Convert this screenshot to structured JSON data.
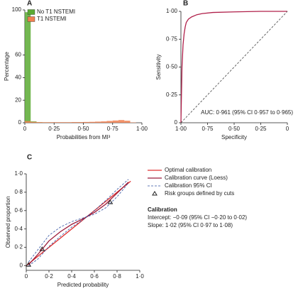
{
  "chart_data": [
    {
      "type": "histogram",
      "title": "A",
      "xlabel": "Probabilities from MI³",
      "ylabel": "Percentage",
      "bins": [
        0,
        0.05,
        0.1,
        0.15,
        0.2,
        0.25,
        0.3,
        0.35,
        0.4,
        0.45,
        0.5,
        0.55,
        0.6,
        0.65,
        0.7,
        0.75,
        0.8,
        0.85,
        0.9,
        0.95,
        1.0
      ],
      "series": [
        {
          "name": "No T1 NSTEMI",
          "color": "#5aaa32",
          "values": [
            98,
            1.2,
            0.4,
            0.2,
            0.1,
            0.05,
            0.05,
            0.03,
            0.02,
            0.02,
            0.01,
            0.01,
            0.01,
            0.01,
            0.01,
            0,
            0,
            0,
            0,
            0
          ]
        },
        {
          "name": "T1 NSTEMI",
          "color": "#f08050",
          "values": [
            1.5,
            0.8,
            0.6,
            0.5,
            0.5,
            0.5,
            0.5,
            0.5,
            0.6,
            0.6,
            0.7,
            0.8,
            1.0,
            1.2,
            1.6,
            2.0,
            2.4,
            1.8,
            0.3,
            0
          ]
        }
      ],
      "xlim": [
        0,
        1
      ],
      "ylim": [
        0,
        100
      ],
      "xticks": [
        0,
        {
          "value": 0.25,
          "label": "0·25"
        },
        {
          "value": 0.5,
          "label": "0·50"
        },
        {
          "value": 0.75,
          "label": "0·75"
        },
        {
          "value": 1,
          "label": "1·00"
        }
      ],
      "yticks": [
        0,
        20,
        40,
        60,
        100
      ],
      "legend": "upper left"
    },
    {
      "type": "line",
      "title": "B",
      "xlabel": "Specificity",
      "ylabel": "Sensitivity",
      "series": [
        {
          "color": "#b0204a",
          "x": [
            1,
            0.99,
            0.98,
            0.97,
            0.96,
            0.95,
            0.93,
            0.9,
            0.85,
            0.8,
            0.7,
            0.5,
            0.25,
            0
          ],
          "values": [
            0,
            0.5,
            0.7,
            0.8,
            0.86,
            0.9,
            0.93,
            0.95,
            0.97,
            0.98,
            0.99,
            0.995,
            1,
            1
          ]
        },
        {
          "color": "#444444",
          "linestyle": "dashed",
          "x": [
            1,
            0
          ],
          "values": [
            0,
            1
          ]
        }
      ],
      "xlim": [
        1,
        0
      ],
      "ylim": [
        0,
        1
      ],
      "xticks": [
        {
          "value": 1,
          "label": "1·00"
        },
        {
          "value": 0.75,
          "label": "0·75"
        },
        {
          "value": 0.5,
          "label": "0·50"
        },
        {
          "value": 0.25,
          "label": "0·25"
        },
        0
      ],
      "yticks": [
        0,
        {
          "value": 0.25,
          "label": "0·25"
        },
        {
          "value": 0.5,
          "label": "0·50"
        },
        {
          "value": 0.75,
          "label": "0·75"
        },
        {
          "value": 1,
          "label": "1·00"
        }
      ],
      "annotation": "AUC: 0·961 (95% CI 0·957 to 0·965)"
    },
    {
      "type": "line",
      "title": "C",
      "xlabel": "Predicted probability",
      "ylabel": "Observed proportion",
      "series": [
        {
          "name": "Optimal calibration",
          "color": "#e03030",
          "x": [
            0,
            0.92
          ],
          "values": [
            0,
            0.92
          ]
        },
        {
          "name": "Calibration curve (Loess)",
          "color": "#9b1b3a",
          "x": [
            0.02,
            0.1,
            0.2,
            0.3,
            0.4,
            0.5,
            0.6,
            0.7,
            0.8,
            0.9
          ],
          "values": [
            0.01,
            0.12,
            0.27,
            0.37,
            0.45,
            0.51,
            0.58,
            0.67,
            0.79,
            0.91
          ]
        },
        {
          "name": "Calibration 95% CI",
          "color": "#3050a0",
          "linestyle": "dashed",
          "x": [
            0.02,
            0.1,
            0.2,
            0.3,
            0.4,
            0.5,
            0.6,
            0.7,
            0.8,
            0.9
          ],
          "values": [
            0.04,
            0.17,
            0.33,
            0.42,
            0.48,
            0.52,
            0.56,
            0.63,
            0.75,
            0.9
          ]
        },
        {
          "color": "#3050a0",
          "linestyle": "dashed",
          "x": [
            0.02,
            0.1,
            0.2,
            0.3,
            0.4,
            0.5,
            0.6,
            0.7,
            0.8,
            0.9
          ],
          "values": [
            0,
            0.07,
            0.21,
            0.32,
            0.42,
            0.5,
            0.6,
            0.71,
            0.83,
            0.94
          ]
        },
        {
          "name": "Risk groups defined by cuts",
          "color": "#222222",
          "marker": "triangle",
          "x": [
            0.02,
            0.14,
            0.74
          ],
          "values": [
            0.01,
            0.18,
            0.69
          ]
        }
      ],
      "xlim": [
        0,
        1
      ],
      "ylim": [
        -0.05,
        1
      ],
      "xticks": [
        0,
        {
          "value": 0.2,
          "label": "0·2"
        },
        {
          "value": 0.4,
          "label": "0·4"
        },
        {
          "value": 0.6,
          "label": "0·6"
        },
        {
          "value": 0.8,
          "label": "0·8"
        },
        {
          "value": 1,
          "label": "1·0"
        }
      ],
      "yticks": [
        0,
        {
          "value": 0.2,
          "label": "0·2"
        },
        {
          "value": 0.4,
          "label": "0·4"
        },
        {
          "value": 0.6,
          "label": "0·6"
        },
        {
          "value": 0.8,
          "label": "0·8"
        },
        {
          "value": 1,
          "label": "1·0"
        }
      ],
      "legend": "right",
      "annotation_title": "Calibration",
      "annotations": [
        "Intercept: −0·09 (95% CI −0·20 to 0·02)",
        "Slope: 1·02 (95% CI 0·97 to 1·08)"
      ]
    }
  ]
}
